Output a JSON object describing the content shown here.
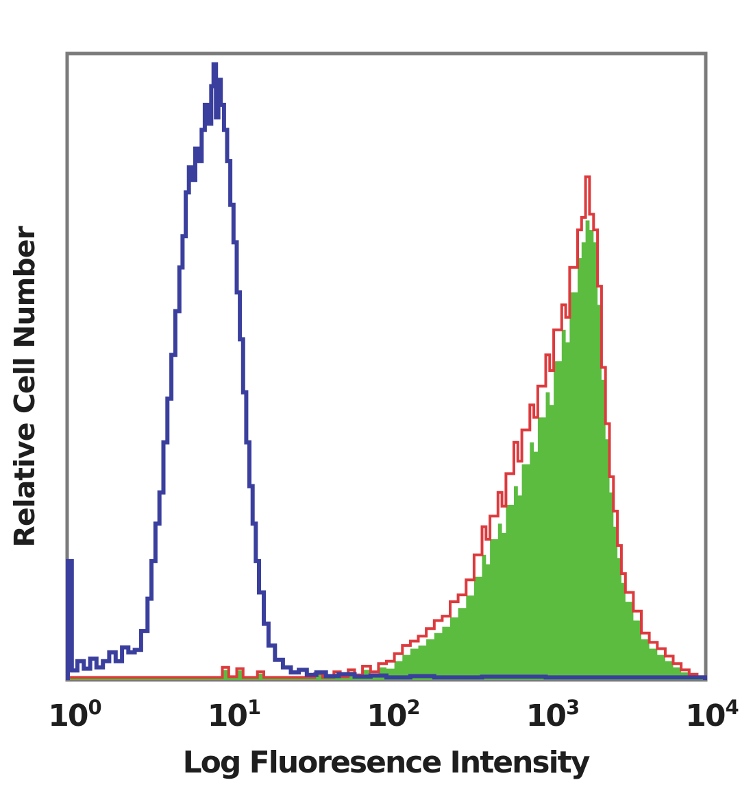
{
  "chart_data": {
    "type": "area",
    "subtype": "flow-cytometry-histogram-overlay",
    "title": "",
    "x_axis": {
      "label": "Log Fluoresence Intensity",
      "scale": "log10",
      "range": [
        1,
        10000
      ],
      "tick_exponents": [
        0,
        1,
        2,
        3,
        4
      ]
    },
    "y_axis": {
      "label": "Relative Cell Number",
      "ticks": [],
      "range_relative": [
        0,
        1
      ]
    },
    "x_tick_labels": [
      {
        "base": "10",
        "exp": "0"
      },
      {
        "base": "10",
        "exp": "1"
      },
      {
        "base": "10",
        "exp": "2"
      },
      {
        "base": "10",
        "exp": "3"
      },
      {
        "base": "10",
        "exp": "4"
      }
    ],
    "grid": false,
    "legend": null,
    "colors": {
      "blue_line": "#3a3f9e",
      "red_line": "#dd3a3d",
      "green_fill": "#5bbc40",
      "plot_border": "#7b7b7b",
      "text": "#1e1e1e",
      "background": "#ffffff"
    },
    "series": [
      {
        "name": "green-filled-histogram",
        "style": "filled-area",
        "fill": "#5bbc40",
        "stroke": "none",
        "approx_mode_x": 1800,
        "approx_peak_height": 0.74,
        "points": [
          [
            0.0,
            0.003
          ],
          [
            0.6,
            0.003
          ],
          [
            0.97,
            0.016
          ],
          [
            1.01,
            0.004
          ],
          [
            1.06,
            0.015
          ],
          [
            1.1,
            0.003
          ],
          [
            1.19,
            0.01
          ],
          [
            1.23,
            0.003
          ],
          [
            1.45,
            0.003
          ],
          [
            1.55,
            0.008
          ],
          [
            1.6,
            0.003
          ],
          [
            1.67,
            0.01
          ],
          [
            1.71,
            0.004
          ],
          [
            1.76,
            0.013
          ],
          [
            1.8,
            0.006
          ],
          [
            1.85,
            0.016
          ],
          [
            1.9,
            0.01
          ],
          [
            1.95,
            0.02
          ],
          [
            2.0,
            0.018
          ],
          [
            2.05,
            0.03
          ],
          [
            2.1,
            0.04
          ],
          [
            2.15,
            0.05
          ],
          [
            2.2,
            0.055
          ],
          [
            2.25,
            0.065
          ],
          [
            2.3,
            0.075
          ],
          [
            2.35,
            0.085
          ],
          [
            2.4,
            0.1
          ],
          [
            2.45,
            0.115
          ],
          [
            2.5,
            0.135
          ],
          [
            2.55,
            0.165
          ],
          [
            2.6,
            0.2
          ],
          [
            2.625,
            0.185
          ],
          [
            2.65,
            0.225
          ],
          [
            2.7,
            0.25
          ],
          [
            2.725,
            0.235
          ],
          [
            2.75,
            0.28
          ],
          [
            2.8,
            0.31
          ],
          [
            2.825,
            0.295
          ],
          [
            2.85,
            0.345
          ],
          [
            2.9,
            0.38
          ],
          [
            2.925,
            0.365
          ],
          [
            2.95,
            0.42
          ],
          [
            3.0,
            0.46
          ],
          [
            3.025,
            0.44
          ],
          [
            3.05,
            0.51
          ],
          [
            3.1,
            0.56
          ],
          [
            3.125,
            0.54
          ],
          [
            3.15,
            0.62
          ],
          [
            3.2,
            0.675
          ],
          [
            3.225,
            0.7
          ],
          [
            3.25,
            0.735
          ],
          [
            3.275,
            0.72
          ],
          [
            3.3,
            0.7
          ],
          [
            3.325,
            0.6
          ],
          [
            3.35,
            0.48
          ],
          [
            3.375,
            0.385
          ],
          [
            3.4,
            0.3
          ],
          [
            3.425,
            0.245
          ],
          [
            3.45,
            0.195
          ],
          [
            3.475,
            0.155
          ],
          [
            3.5,
            0.125
          ],
          [
            3.55,
            0.095
          ],
          [
            3.6,
            0.065
          ],
          [
            3.65,
            0.05
          ],
          [
            3.7,
            0.04
          ],
          [
            3.75,
            0.03
          ],
          [
            3.8,
            0.02
          ],
          [
            3.85,
            0.012
          ],
          [
            3.9,
            0.006
          ],
          [
            3.95,
            0.003
          ],
          [
            4.0,
            0.003
          ]
        ]
      },
      {
        "name": "red-outline-histogram",
        "style": "open-line",
        "fill": "none",
        "stroke": "#dd3a3d",
        "line_width": 4,
        "approx_mode_x": 1800,
        "approx_peak_height": 0.8,
        "points": [
          [
            0.0,
            0.004
          ],
          [
            0.6,
            0.004
          ],
          [
            0.97,
            0.02
          ],
          [
            1.01,
            0.005
          ],
          [
            1.06,
            0.018
          ],
          [
            1.1,
            0.004
          ],
          [
            1.19,
            0.013
          ],
          [
            1.23,
            0.004
          ],
          [
            1.45,
            0.004
          ],
          [
            1.55,
            0.01
          ],
          [
            1.6,
            0.004
          ],
          [
            1.67,
            0.013
          ],
          [
            1.71,
            0.005
          ],
          [
            1.76,
            0.016
          ],
          [
            1.8,
            0.008
          ],
          [
            1.85,
            0.022
          ],
          [
            1.9,
            0.013
          ],
          [
            1.95,
            0.026
          ],
          [
            2.0,
            0.03
          ],
          [
            2.05,
            0.042
          ],
          [
            2.1,
            0.055
          ],
          [
            2.15,
            0.062
          ],
          [
            2.2,
            0.07
          ],
          [
            2.25,
            0.082
          ],
          [
            2.3,
            0.095
          ],
          [
            2.35,
            0.102
          ],
          [
            2.4,
            0.125
          ],
          [
            2.45,
            0.136
          ],
          [
            2.5,
            0.16
          ],
          [
            2.55,
            0.2
          ],
          [
            2.6,
            0.245
          ],
          [
            2.625,
            0.225
          ],
          [
            2.65,
            0.262
          ],
          [
            2.7,
            0.3
          ],
          [
            2.725,
            0.278
          ],
          [
            2.75,
            0.33
          ],
          [
            2.8,
            0.38
          ],
          [
            2.825,
            0.35
          ],
          [
            2.85,
            0.4
          ],
          [
            2.9,
            0.44
          ],
          [
            2.925,
            0.42
          ],
          [
            2.95,
            0.47
          ],
          [
            3.0,
            0.52
          ],
          [
            3.025,
            0.495
          ],
          [
            3.05,
            0.56
          ],
          [
            3.1,
            0.6
          ],
          [
            3.125,
            0.58
          ],
          [
            3.15,
            0.66
          ],
          [
            3.2,
            0.72
          ],
          [
            3.225,
            0.74
          ],
          [
            3.25,
            0.805
          ],
          [
            3.275,
            0.745
          ],
          [
            3.3,
            0.72
          ],
          [
            3.325,
            0.63
          ],
          [
            3.35,
            0.5
          ],
          [
            3.375,
            0.41
          ],
          [
            3.4,
            0.325
          ],
          [
            3.425,
            0.27
          ],
          [
            3.45,
            0.215
          ],
          [
            3.475,
            0.17
          ],
          [
            3.5,
            0.14
          ],
          [
            3.55,
            0.11
          ],
          [
            3.6,
            0.075
          ],
          [
            3.65,
            0.06
          ],
          [
            3.7,
            0.05
          ],
          [
            3.75,
            0.038
          ],
          [
            3.8,
            0.026
          ],
          [
            3.85,
            0.016
          ],
          [
            3.9,
            0.009
          ],
          [
            3.95,
            0.005
          ],
          [
            4.0,
            0.004
          ]
        ]
      },
      {
        "name": "blue-open-histogram",
        "style": "open-line",
        "fill": "none",
        "stroke": "#3a3f9e",
        "line_width": 6,
        "approx_mode_x": 8,
        "approx_peak_height": 0.985,
        "points": [
          [
            0.0,
            0.19
          ],
          [
            0.025,
            0.015
          ],
          [
            0.06,
            0.03
          ],
          [
            0.1,
            0.018
          ],
          [
            0.14,
            0.034
          ],
          [
            0.18,
            0.02
          ],
          [
            0.22,
            0.03
          ],
          [
            0.26,
            0.044
          ],
          [
            0.3,
            0.03
          ],
          [
            0.34,
            0.052
          ],
          [
            0.38,
            0.044
          ],
          [
            0.42,
            0.048
          ],
          [
            0.46,
            0.078
          ],
          [
            0.5,
            0.13
          ],
          [
            0.525,
            0.19
          ],
          [
            0.55,
            0.25
          ],
          [
            0.575,
            0.3
          ],
          [
            0.6,
            0.38
          ],
          [
            0.625,
            0.45
          ],
          [
            0.65,
            0.52
          ],
          [
            0.675,
            0.59
          ],
          [
            0.7,
            0.66
          ],
          [
            0.72,
            0.71
          ],
          [
            0.74,
            0.78
          ],
          [
            0.76,
            0.82
          ],
          [
            0.78,
            0.8
          ],
          [
            0.8,
            0.85
          ],
          [
            0.82,
            0.83
          ],
          [
            0.84,
            0.88
          ],
          [
            0.86,
            0.92
          ],
          [
            0.88,
            0.89
          ],
          [
            0.9,
            0.95
          ],
          [
            0.915,
            0.985
          ],
          [
            0.93,
            0.9
          ],
          [
            0.945,
            0.96
          ],
          [
            0.96,
            0.92
          ],
          [
            0.98,
            0.88
          ],
          [
            1.0,
            0.83
          ],
          [
            1.02,
            0.76
          ],
          [
            1.04,
            0.7
          ],
          [
            1.06,
            0.62
          ],
          [
            1.08,
            0.545
          ],
          [
            1.1,
            0.46
          ],
          [
            1.12,
            0.38
          ],
          [
            1.14,
            0.31
          ],
          [
            1.16,
            0.25
          ],
          [
            1.18,
            0.19
          ],
          [
            1.2,
            0.14
          ],
          [
            1.23,
            0.09
          ],
          [
            1.26,
            0.055
          ],
          [
            1.3,
            0.032
          ],
          [
            1.35,
            0.02
          ],
          [
            1.4,
            0.012
          ],
          [
            1.45,
            0.016
          ],
          [
            1.5,
            0.008
          ],
          [
            1.56,
            0.012
          ],
          [
            1.62,
            0.006
          ],
          [
            1.7,
            0.009
          ],
          [
            1.8,
            0.005
          ],
          [
            1.9,
            0.007
          ],
          [
            2.0,
            0.004
          ],
          [
            2.15,
            0.006
          ],
          [
            2.3,
            0.004
          ],
          [
            2.6,
            0.005
          ],
          [
            3.0,
            0.004
          ],
          [
            3.5,
            0.004
          ],
          [
            4.0,
            0.004
          ]
        ]
      }
    ]
  }
}
